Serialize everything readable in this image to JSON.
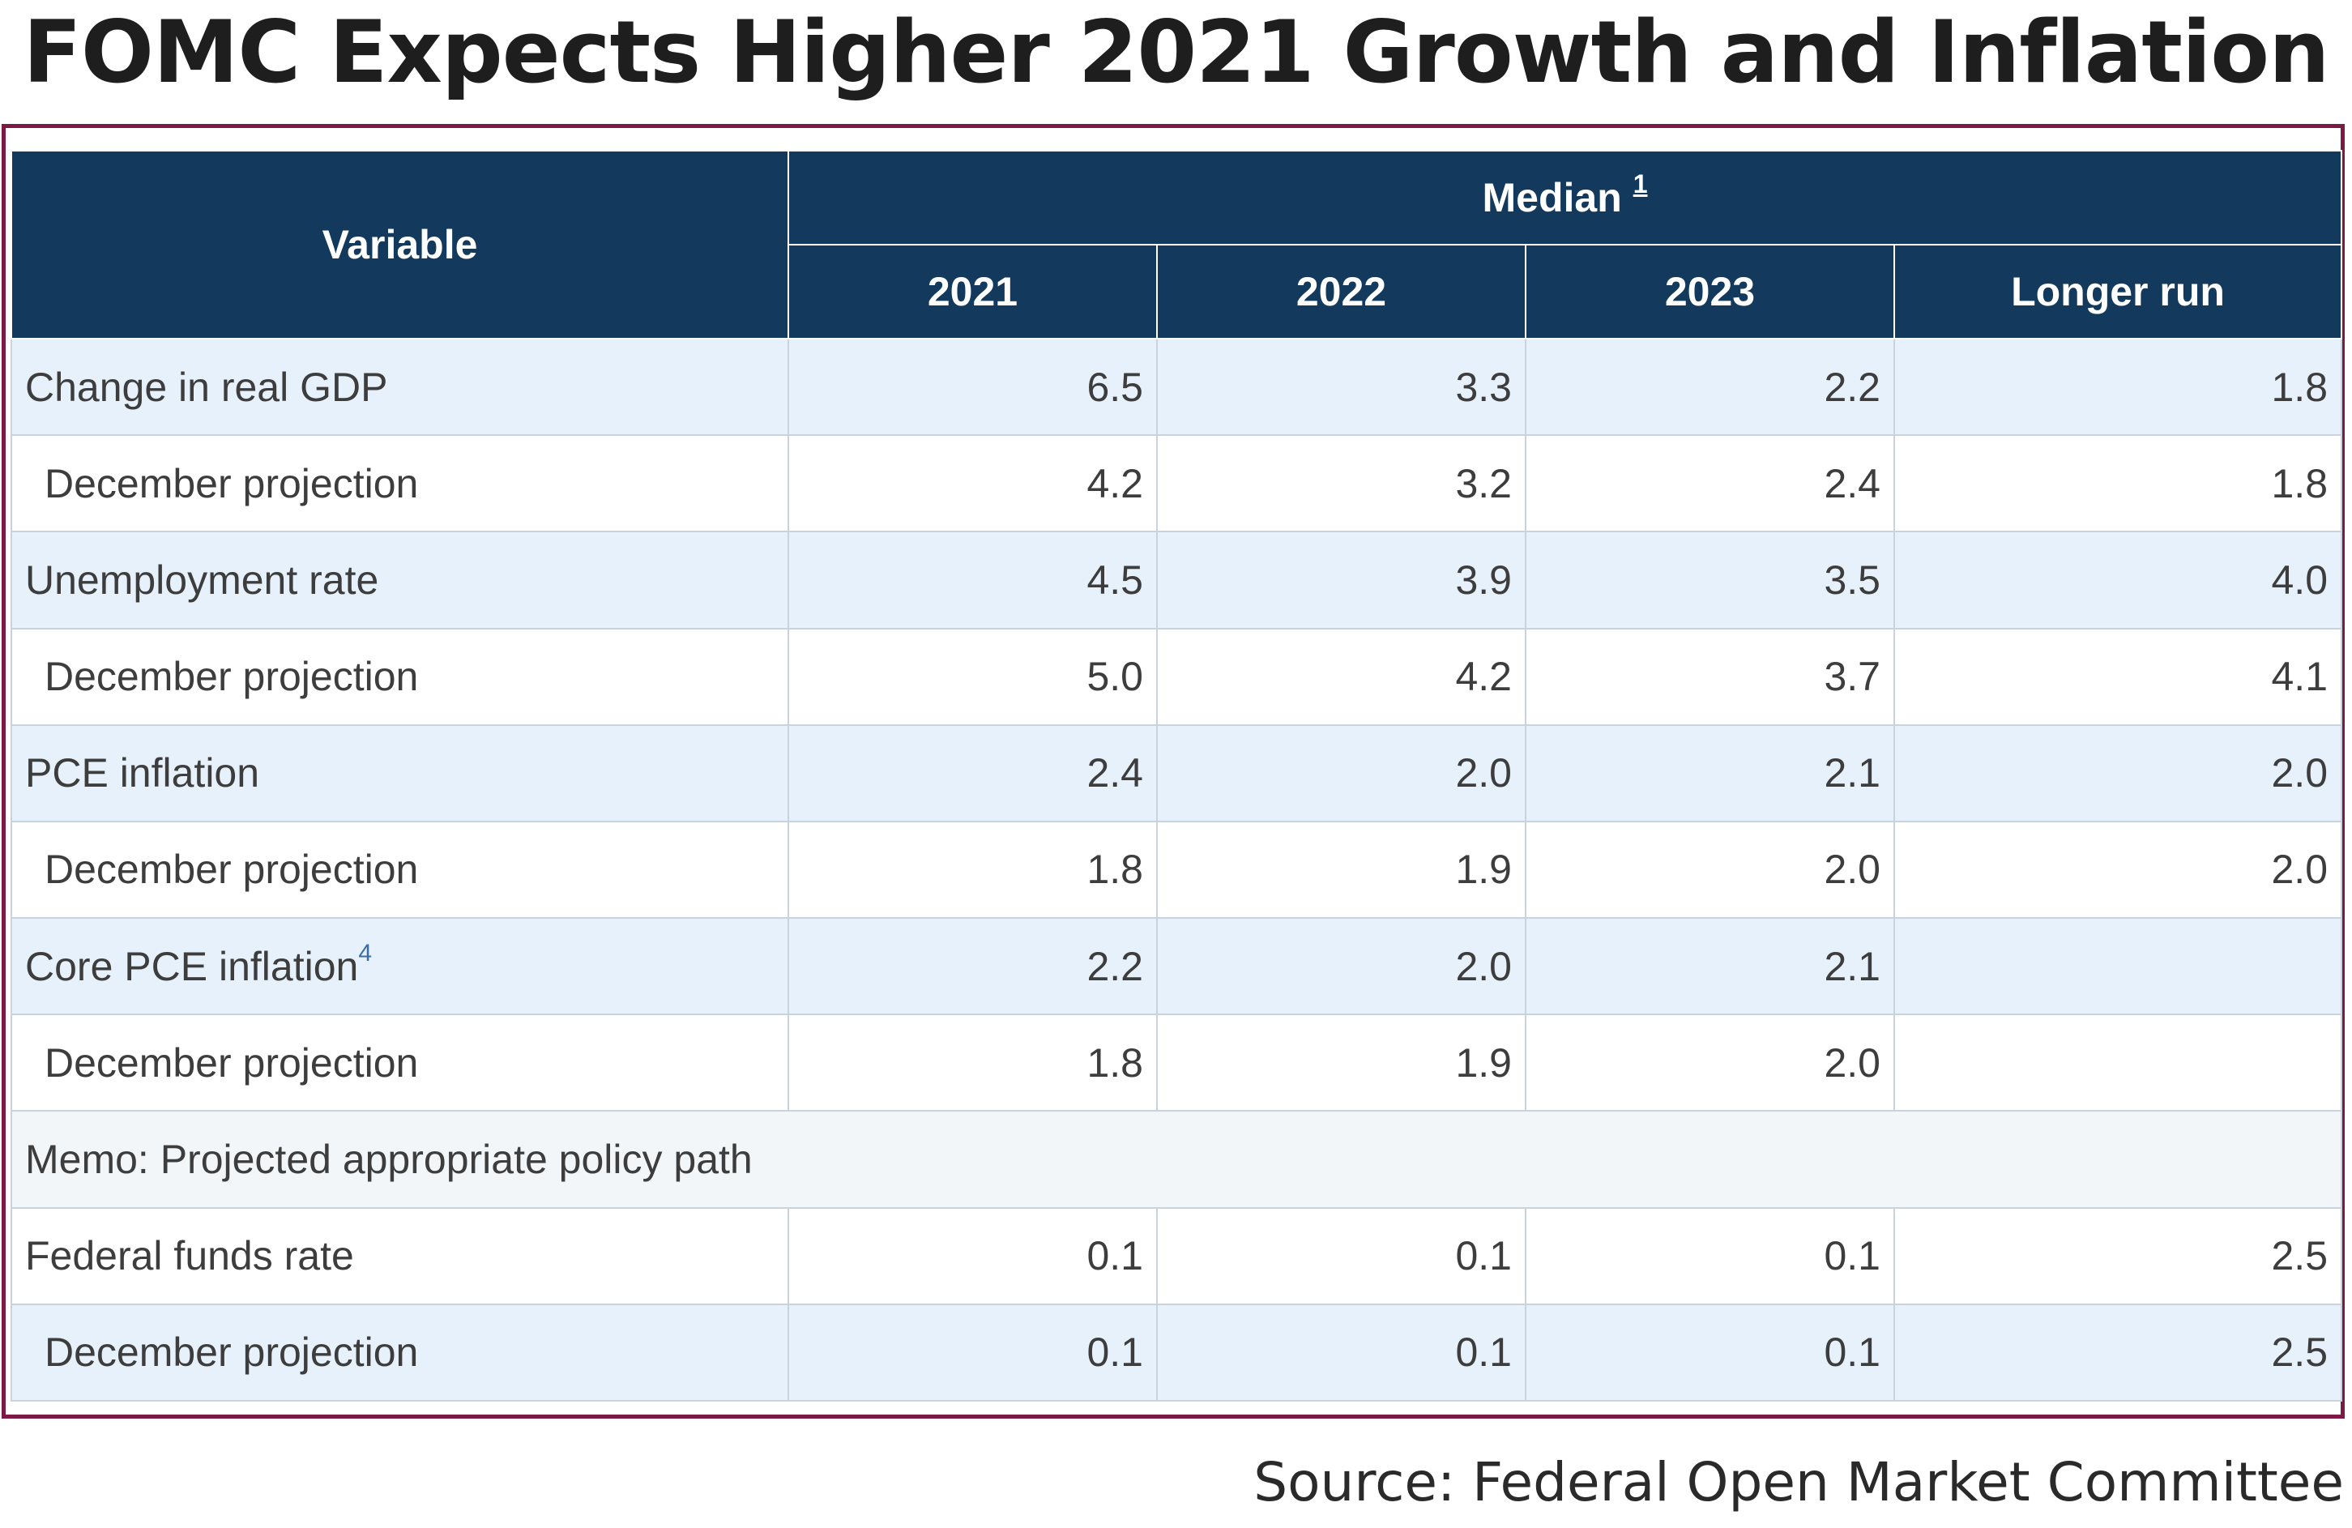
{
  "title": "FOMC Expects Higher 2021 Growth and Inflation",
  "source": "Source: Federal Open Market Committee",
  "colors": {
    "header_bg": "#133a5c",
    "frame": "#7b1a45",
    "row_shade": "#e6f1fb",
    "footnote_link": "#3a6ea5"
  },
  "table": {
    "variable_header": "Variable",
    "median_header": "Median",
    "median_footnote": "1",
    "columns": [
      "2021",
      "2022",
      "2023",
      "Longer run"
    ],
    "rows": [
      {
        "label": "Change in real GDP",
        "values": [
          "6.5",
          "3.3",
          "2.2",
          "1.8"
        ]
      },
      {
        "label": "December projection",
        "values": [
          "4.2",
          "3.2",
          "2.4",
          "1.8"
        ]
      },
      {
        "label": "Unemployment rate",
        "values": [
          "4.5",
          "3.9",
          "3.5",
          "4.0"
        ]
      },
      {
        "label": "December projection",
        "values": [
          "5.0",
          "4.2",
          "3.7",
          "4.1"
        ]
      },
      {
        "label": "PCE inflation",
        "values": [
          "2.4",
          "2.0",
          "2.1",
          "2.0"
        ]
      },
      {
        "label": "December projection",
        "values": [
          "1.8",
          "1.9",
          "2.0",
          "2.0"
        ]
      },
      {
        "label": "Core PCE inflation",
        "footnote": "4",
        "values": [
          "2.2",
          "2.0",
          "2.1",
          ""
        ]
      },
      {
        "label": "December projection",
        "values": [
          "1.8",
          "1.9",
          "2.0",
          ""
        ]
      }
    ],
    "memo_label": "Memo: Projected appropriate policy path",
    "memo_rows": [
      {
        "label": "Federal funds rate",
        "values": [
          "0.1",
          "0.1",
          "0.1",
          "2.5"
        ]
      },
      {
        "label": "December projection",
        "values": [
          "0.1",
          "0.1",
          "0.1",
          "2.5"
        ]
      }
    ]
  }
}
